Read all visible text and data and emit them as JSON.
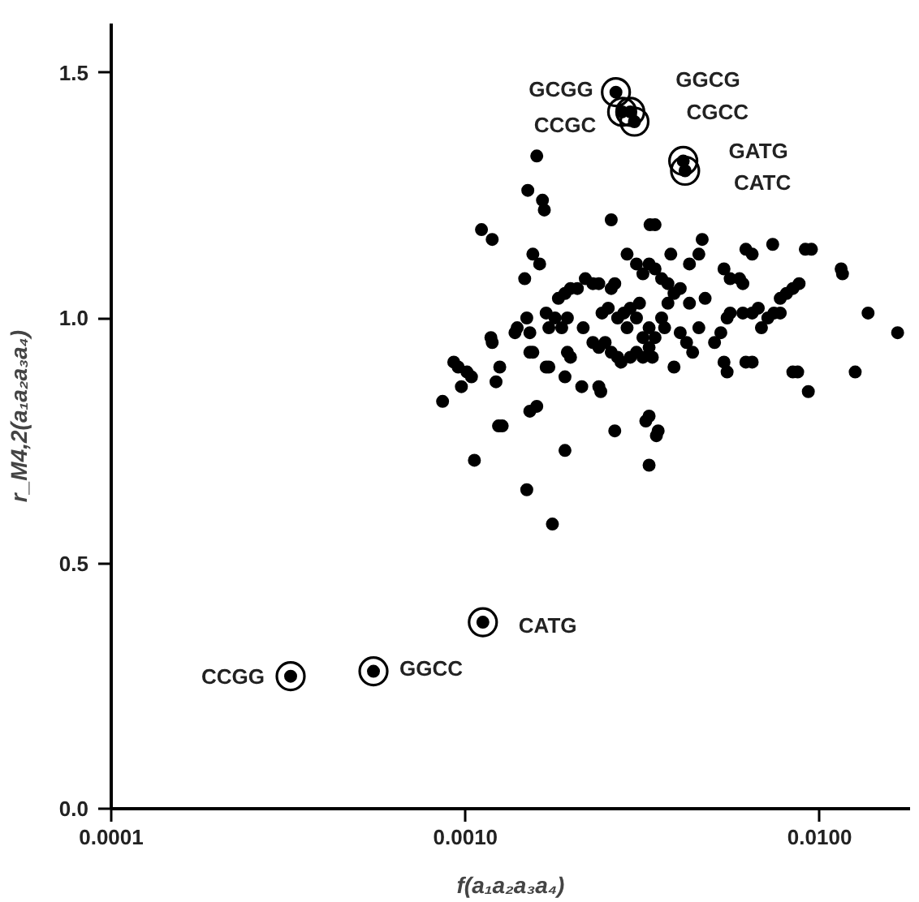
{
  "chart_data": {
    "type": "scatter",
    "xlabel": "f(a₁a₂a₃a₄)",
    "ylabel": "r_M4,2(a₁a₂a₃a₄)",
    "log": "x",
    "marker": "circle",
    "xlim": [
      0.0001,
      0.018
    ],
    "ylim": [
      0,
      1.6
    ],
    "xticks": [
      {
        "value": 0.0001,
        "label": "0.0001"
      },
      {
        "value": 0.001,
        "label": "0.0010"
      },
      {
        "value": 0.01,
        "label": "0.0100"
      }
    ],
    "yticks": [
      {
        "value": 0,
        "label": "0.0"
      },
      0.5,
      {
        "value": 1,
        "label": "1.0"
      },
      1.5
    ],
    "series": [
      {
        "color": "#000000",
        "x": [
          0.000321,
          0.00055,
          0.00112,
          0.00266,
          0.00277,
          0.00292,
          0.003,
          0.00412,
          0.00417,
          0.00159,
          0.0015,
          0.00165,
          0.00167,
          0.00111,
          0.00119,
          0.00258,
          0.00332,
          0.00343,
          0.00155,
          0.00162,
          0.00147,
          0.00286,
          0.0038,
          0.00466,
          0.00456,
          0.00429,
          0.00619,
          0.00645,
          0.00737,
          0.00911,
          0.00948,
          0.0115,
          0.0116,
          0.0137,
          0.0166,
          0.00183,
          0.00191,
          0.00198,
          0.00207,
          0.00218,
          0.00229,
          0.00238,
          0.00258,
          0.00264,
          0.00304,
          0.00317,
          0.0033,
          0.00343,
          0.00358,
          0.00373,
          0.00388,
          0.00404,
          0.00429,
          0.00475,
          0.00537,
          0.00559,
          0.00594,
          0.00607,
          0.0084,
          0.00875,
          0.00806,
          0.00774,
          0.00149,
          0.0014,
          0.00138,
          0.00152,
          0.00169,
          0.00172,
          0.00179,
          0.00187,
          0.00194,
          0.00215,
          0.00243,
          0.00253,
          0.00269,
          0.0028,
          0.00286,
          0.00292,
          0.00304,
          0.0031,
          0.00317,
          0.0033,
          0.00343,
          0.00358,
          0.00365,
          0.00373,
          0.00404,
          0.00421,
          0.00438,
          0.00456,
          0.00505,
          0.00526,
          0.00548,
          0.00559,
          0.00607,
          0.00645,
          0.00671,
          0.00685,
          0.00714,
          0.00743,
          0.00774,
          0.00248,
          0.00258,
          0.00269,
          0.00275,
          0.00292,
          0.00304,
          0.00317,
          0.0033,
          0.00337,
          0.00229,
          0.00238,
          0.00194,
          0.00198,
          0.00118,
          0.00119,
          0.00152,
          0.00155,
          0.00172,
          0.00169,
          0.000927,
          0.000954,
          0.00101,
          0.00104,
          0.000974,
          0.00122,
          0.00125,
          0.00191,
          0.00213,
          0.00238,
          0.00241,
          0.00388,
          0.00537,
          0.00548,
          0.00619,
          0.00645,
          0.0084,
          0.00867,
          0.00929,
          0.0126,
          0.000862,
          0.00152,
          0.00159,
          0.00124,
          0.00127,
          0.00264,
          0.00323,
          0.0033,
          0.0035,
          0.00346,
          0.00106,
          0.00191,
          0.0033,
          0.00149,
          0.00176
        ],
        "values": [
          0.27,
          0.28,
          0.38,
          1.46,
          1.42,
          1.42,
          1.4,
          1.32,
          1.3,
          1.33,
          1.26,
          1.24,
          1.22,
          1.18,
          1.16,
          1.2,
          1.19,
          1.19,
          1.13,
          1.11,
          1.08,
          1.13,
          1.13,
          1.16,
          1.13,
          1.11,
          1.14,
          1.13,
          1.15,
          1.14,
          1.14,
          1.1,
          1.09,
          1.01,
          0.97,
          1.04,
          1.05,
          1.06,
          1.06,
          1.08,
          1.07,
          1.07,
          1.06,
          1.07,
          1.11,
          1.09,
          1.11,
          1.1,
          1.08,
          1.07,
          1.05,
          1.06,
          1.03,
          1.04,
          1.1,
          1.08,
          1.08,
          1.07,
          1.06,
          1.07,
          1.05,
          1.04,
          1.0,
          0.98,
          0.97,
          0.97,
          1.01,
          0.98,
          1.0,
          0.98,
          1.0,
          0.98,
          1.01,
          1.02,
          1.0,
          1.01,
          0.98,
          1.02,
          1.0,
          1.03,
          0.96,
          0.98,
          0.96,
          1.0,
          0.98,
          1.03,
          0.97,
          0.95,
          0.93,
          0.98,
          0.95,
          0.97,
          1.0,
          1.01,
          1.01,
          1.01,
          1.02,
          0.98,
          1.0,
          1.01,
          1.01,
          0.95,
          0.93,
          0.92,
          0.91,
          0.92,
          0.93,
          0.92,
          0.94,
          0.92,
          0.95,
          0.94,
          0.93,
          0.92,
          0.96,
          0.95,
          0.93,
          0.93,
          0.9,
          0.9,
          0.91,
          0.9,
          0.89,
          0.88,
          0.86,
          0.87,
          0.9,
          0.88,
          0.86,
          0.86,
          0.85,
          0.9,
          0.91,
          0.89,
          0.91,
          0.91,
          0.89,
          0.89,
          0.85,
          0.89,
          0.83,
          0.81,
          0.82,
          0.78,
          0.78,
          0.77,
          0.79,
          0.8,
          0.77,
          0.76,
          0.71,
          0.73,
          0.7,
          0.65,
          0.58
        ]
      }
    ],
    "annotations": [
      {
        "text": "CCGG",
        "x": 0.000321,
        "y": 0.27
      },
      {
        "text": "GGCC",
        "x": 0.00055,
        "y": 0.28
      },
      {
        "text": "CATG",
        "x": 0.00112,
        "y": 0.38
      },
      {
        "text": "GCGG",
        "x": 0.00266,
        "y": 1.46
      },
      {
        "text": "CCGC",
        "x": 0.00277,
        "y": 1.42
      },
      {
        "text": "GGCG",
        "x": 0.00292,
        "y": 1.42
      },
      {
        "text": "CGCC",
        "x": 0.003,
        "y": 1.4
      },
      {
        "text": "GATG",
        "x": 0.00412,
        "y": 1.32
      },
      {
        "text": "CATC",
        "x": 0.00417,
        "y": 1.3
      }
    ]
  }
}
